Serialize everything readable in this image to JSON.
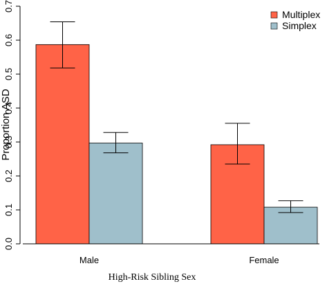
{
  "chart_data": {
    "type": "bar",
    "xlabel": "High-Risk Sibling Sex",
    "ylabel": "Proportion ASD",
    "ylim": [
      0,
      0.7
    ],
    "yticks": [
      "0.0",
      "0.1",
      "0.2",
      "0.3",
      "0.4",
      "0.5",
      "0.6",
      "0.7"
    ],
    "categories": [
      "Male",
      "Female"
    ],
    "series": [
      {
        "name": "Multiplex",
        "color": "#ff6347",
        "values": [
          0.587,
          0.292
        ],
        "error_low": [
          0.518,
          0.235
        ],
        "error_high": [
          0.654,
          0.355
        ]
      },
      {
        "name": "Simplex",
        "color": "#9fbfcb",
        "values": [
          0.297,
          0.108
        ],
        "error_low": [
          0.268,
          0.092
        ],
        "error_high": [
          0.328,
          0.127
        ]
      }
    ],
    "legend_position": "top-right",
    "grid": false
  }
}
